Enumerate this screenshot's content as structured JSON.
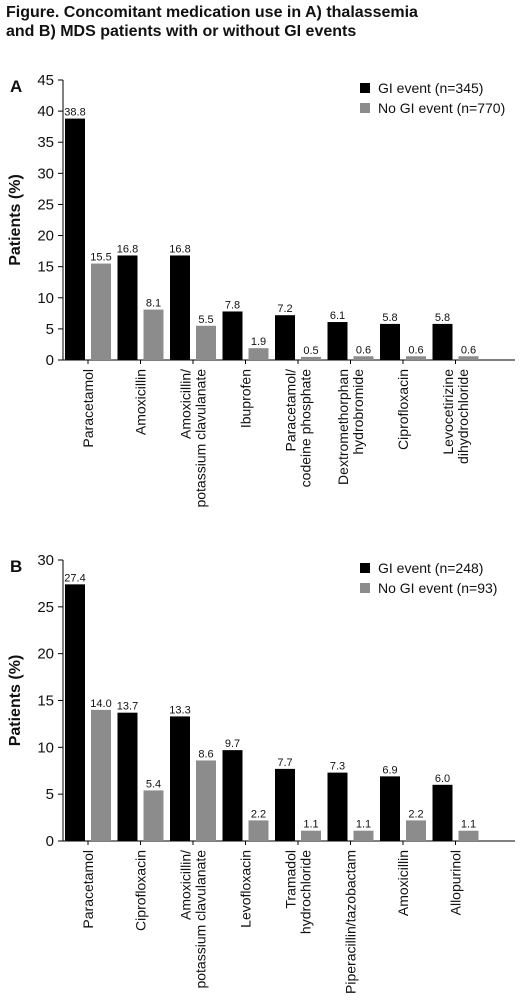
{
  "figure": {
    "title_line1": "Figure. Concomitant medication use in A) thalassemia",
    "title_line2": "and B) MDS patients with or without GI events"
  },
  "colors": {
    "gi_event": "#000000",
    "no_gi_event": "#8c8c8c"
  },
  "chart_data": [
    {
      "type": "bar",
      "panel_label": "A",
      "ylabel": "Patients (%)",
      "ylim": [
        0,
        45
      ],
      "yticks": [
        0,
        5,
        10,
        15,
        20,
        25,
        30,
        35,
        40,
        45
      ],
      "legend_position": "top-right",
      "categories": [
        [
          "Paracetamol"
        ],
        [
          "Amoxicillin"
        ],
        [
          "Amoxicillin/",
          "potassium clavulanate"
        ],
        [
          "Ibuprofen"
        ],
        [
          "Paracetamol/",
          "codeine phosphate"
        ],
        [
          "Dextromethorphan",
          "hydrobromide"
        ],
        [
          "Ciprofloxacin"
        ],
        [
          "Levocetirizine",
          "dihydrochloride"
        ]
      ],
      "series": [
        {
          "name": "GI event (n=345)",
          "color": "#000000",
          "values": [
            38.8,
            16.8,
            16.8,
            7.8,
            7.2,
            6.1,
            5.8,
            5.8
          ],
          "labels": [
            "38.8",
            "16.8",
            "16.8",
            "7.8",
            "7.2",
            "6.1",
            "5.8",
            "5.8"
          ]
        },
        {
          "name": "No GI event (n=770)",
          "color": "#8c8c8c",
          "values": [
            15.5,
            8.1,
            5.5,
            1.9,
            0.5,
            0.6,
            0.6,
            0.6
          ],
          "labels": [
            "15.5",
            "8.1",
            "5.5",
            "1.9",
            "0.5",
            "0.6",
            "0.6",
            "0.6"
          ]
        }
      ]
    },
    {
      "type": "bar",
      "panel_label": "B",
      "ylabel": "Patients (%)",
      "ylim": [
        0,
        30
      ],
      "yticks": [
        0,
        5,
        10,
        15,
        20,
        25,
        30
      ],
      "legend_position": "top-right",
      "categories": [
        [
          "Paracetamol"
        ],
        [
          "Ciprofloxacin"
        ],
        [
          "Amoxicillin/",
          "potassium clavulanate"
        ],
        [
          "Levofloxacin"
        ],
        [
          "Tramadol",
          "hydrochloride"
        ],
        [
          "Piperacillin/tazobactam"
        ],
        [
          "Amoxicillin"
        ],
        [
          "Allopurinol"
        ]
      ],
      "series": [
        {
          "name": "GI event (n=248)",
          "color": "#000000",
          "values": [
            27.4,
            13.7,
            13.3,
            9.7,
            7.7,
            7.3,
            6.9,
            6.0
          ],
          "labels": [
            "27.4",
            "13.7",
            "13.3",
            "9.7",
            "7.7",
            "7.3",
            "6.9",
            "6.0"
          ]
        },
        {
          "name": "No GI event (n=93)",
          "color": "#8c8c8c",
          "values": [
            14.0,
            5.4,
            8.6,
            2.2,
            1.1,
            1.1,
            2.2,
            1.1
          ],
          "labels": [
            "14.0",
            "5.4",
            "8.6",
            "2.2",
            "1.1",
            "1.1",
            "2.2",
            "1.1"
          ]
        }
      ]
    }
  ]
}
